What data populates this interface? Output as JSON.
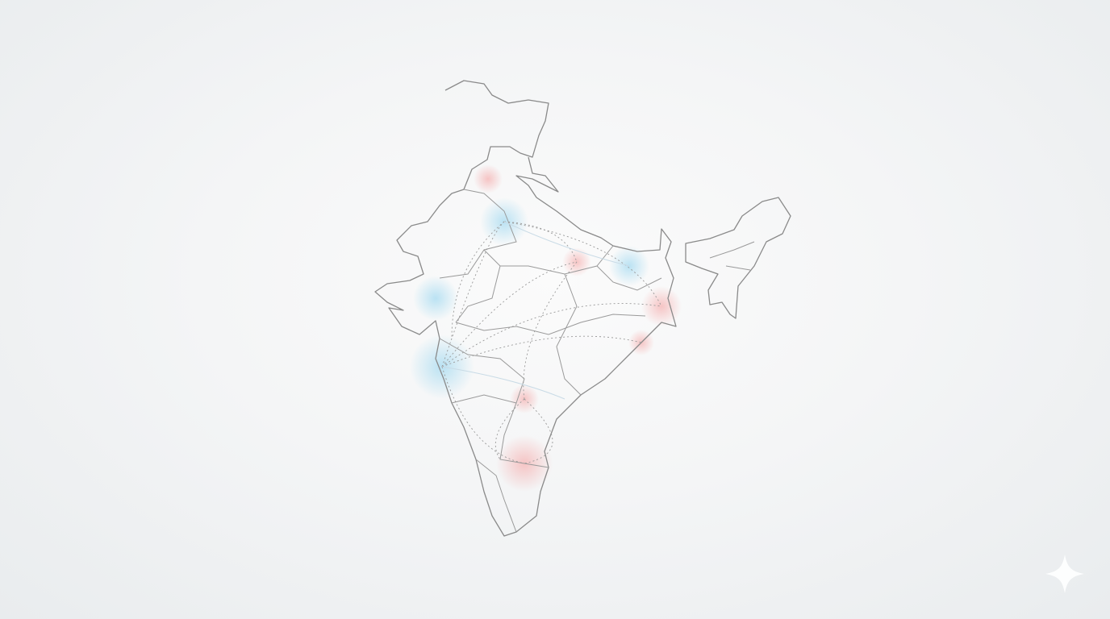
{
  "map": {
    "region": "India",
    "style": "line outline with state borders and dotted connection arcs",
    "colors": {
      "outline": "#8a8a8a",
      "glow_blue": "#9fd8f0",
      "glow_red": "#f5b3b3",
      "background": "#f4f5f6"
    },
    "icons": [
      "sparkle-icon"
    ]
  }
}
